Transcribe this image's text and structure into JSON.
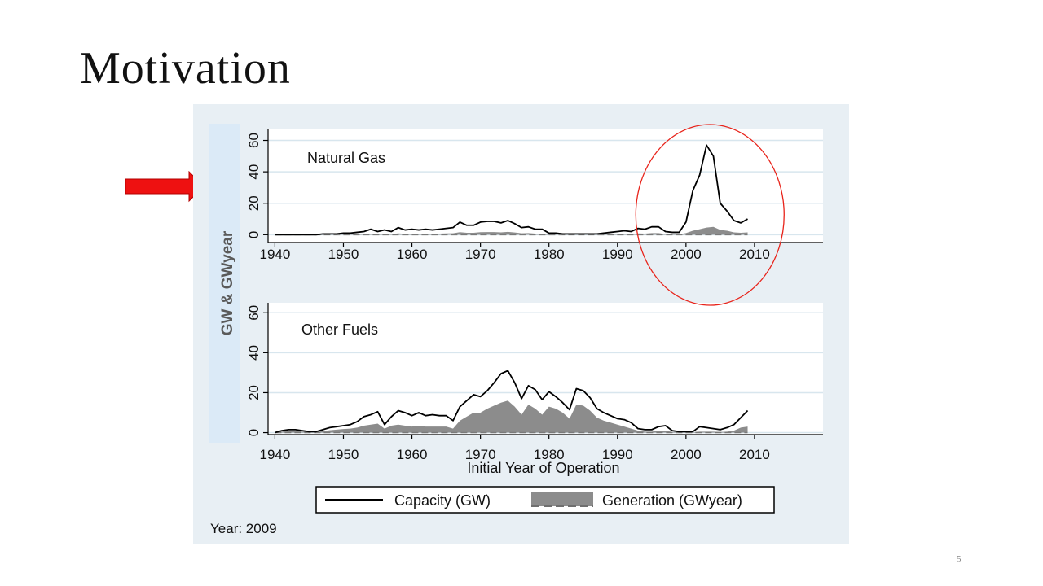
{
  "slide": {
    "title": "Motivation",
    "page_number": "5"
  },
  "figure": {
    "y_axis_title": "GW & GWyear",
    "x_axis_title": "Initial Year of Operation",
    "year_label": "Year: 2009",
    "legend": {
      "capacity": "Capacity (GW)",
      "generation": "Generation (GWyear)"
    }
  },
  "colors": {
    "arrow": "#ee1111",
    "highlight_circle": "#e8231a",
    "panel_background": "#e8eff4",
    "plot_background": "#ffffff",
    "axis_title_band": "#dbeaf7",
    "axis_title_text": "#5a5a5a",
    "capacity_line": "#000000",
    "generation_fill": "#8c8c8c",
    "grid": "#d8e6ee"
  },
  "chart_data": [
    {
      "type": "area",
      "panel_label": "Natural Gas",
      "x_ticks": [
        1940,
        1950,
        1960,
        1970,
        1980,
        1990,
        2000,
        2010
      ],
      "y_ticks": [
        0,
        20,
        40,
        60
      ],
      "xlim": [
        1939,
        2020
      ],
      "ylim": [
        -5,
        67
      ],
      "grid": true,
      "highlighted_range": [
        1998,
        2009
      ],
      "x": [
        1940,
        1941,
        1942,
        1943,
        1944,
        1945,
        1946,
        1947,
        1948,
        1949,
        1950,
        1951,
        1952,
        1953,
        1954,
        1955,
        1956,
        1957,
        1958,
        1959,
        1960,
        1961,
        1962,
        1963,
        1964,
        1965,
        1966,
        1967,
        1968,
        1969,
        1970,
        1971,
        1972,
        1973,
        1974,
        1975,
        1976,
        1977,
        1978,
        1979,
        1980,
        1981,
        1982,
        1983,
        1984,
        1985,
        1986,
        1987,
        1988,
        1989,
        1990,
        1991,
        1992,
        1993,
        1994,
        1995,
        1996,
        1997,
        1998,
        1999,
        2000,
        2001,
        2002,
        2003,
        2004,
        2005,
        2006,
        2007,
        2008,
        2009
      ],
      "series": [
        {
          "name": "Capacity (GW)",
          "style": "line",
          "values": [
            0,
            0,
            0,
            0,
            0,
            0,
            0,
            0.5,
            0.5,
            0.5,
            1,
            1,
            1.5,
            2,
            3.5,
            2,
            3,
            2,
            4.5,
            3,
            3.5,
            3,
            3.5,
            3,
            3.5,
            4,
            4.5,
            8,
            6,
            6,
            8,
            8.5,
            8.5,
            7.5,
            9,
            7,
            4.5,
            5,
            3.5,
            3.5,
            1,
            1,
            0.5,
            0.5,
            0.5,
            0.5,
            0.5,
            0.5,
            1,
            1.5,
            2,
            2.5,
            2,
            4,
            3.5,
            5,
            5,
            2,
            1.5,
            1.5,
            8,
            28,
            38,
            57,
            50,
            20,
            15,
            9,
            7.5,
            10
          ]
        },
        {
          "name": "Generation (GWyear)",
          "style": "area",
          "values": [
            0,
            0,
            0,
            0,
            0,
            0,
            0,
            0,
            0,
            0,
            0.2,
            0.2,
            0.3,
            0.3,
            0.5,
            0.4,
            0.5,
            0.4,
            0.8,
            0.6,
            0.7,
            0.6,
            0.7,
            0.6,
            0.7,
            0.8,
            0.9,
            1.6,
            1.2,
            1.2,
            1.6,
            1.7,
            1.7,
            1.5,
            1.8,
            1.4,
            0.9,
            1,
            0.7,
            0.7,
            0.2,
            0.2,
            0.1,
            0.1,
            0.1,
            0.1,
            0.1,
            0.1,
            0.2,
            0.3,
            0.4,
            0.5,
            0.4,
            0.8,
            0.7,
            1,
            1,
            0.4,
            0.3,
            0.3,
            1,
            2.5,
            3.5,
            4.5,
            5,
            3,
            2.5,
            1.5,
            1.2,
            1.5
          ]
        }
      ]
    },
    {
      "type": "area",
      "panel_label": "Other Fuels",
      "x_ticks": [
        1940,
        1950,
        1960,
        1970,
        1980,
        1990,
        2000,
        2010
      ],
      "y_ticks": [
        0,
        20,
        40,
        60
      ],
      "xlim": [
        1939,
        2020
      ],
      "ylim": [
        -1,
        65
      ],
      "grid": true,
      "x": [
        1940,
        1941,
        1942,
        1943,
        1944,
        1945,
        1946,
        1947,
        1948,
        1949,
        1950,
        1951,
        1952,
        1953,
        1954,
        1955,
        1956,
        1957,
        1958,
        1959,
        1960,
        1961,
        1962,
        1963,
        1964,
        1965,
        1966,
        1967,
        1968,
        1969,
        1970,
        1971,
        1972,
        1973,
        1974,
        1975,
        1976,
        1977,
        1978,
        1979,
        1980,
        1981,
        1982,
        1983,
        1984,
        1985,
        1986,
        1987,
        1988,
        1989,
        1990,
        1991,
        1992,
        1993,
        1994,
        1995,
        1996,
        1997,
        1998,
        1999,
        2000,
        2001,
        2002,
        2003,
        2004,
        2005,
        2006,
        2007,
        2008,
        2009
      ],
      "series": [
        {
          "name": "Capacity (GW)",
          "style": "line",
          "values": [
            0,
            1,
            1.5,
            1.5,
            1,
            0.5,
            0.5,
            1.5,
            2.5,
            3,
            3.5,
            4,
            5.5,
            8,
            9,
            10.5,
            4,
            8,
            11,
            10,
            8.5,
            10,
            8.5,
            9,
            8.5,
            8.5,
            6,
            13,
            16,
            19,
            18,
            21,
            25,
            29.5,
            31,
            25,
            17,
            23.5,
            21.5,
            16.5,
            20.5,
            18,
            15,
            11.5,
            22,
            21,
            17.5,
            12,
            10,
            8.5,
            7,
            6.5,
            5,
            2,
            1.5,
            1.5,
            3,
            3.5,
            1,
            0.5,
            0.5,
            0.5,
            3,
            2.5,
            2,
            1.5,
            2.5,
            4,
            7.5,
            11
          ]
        },
        {
          "name": "Generation (GWyear)",
          "style": "area",
          "values": [
            0,
            0.5,
            1,
            1,
            0.5,
            0.3,
            0.3,
            0.8,
            1.2,
            1.5,
            1.8,
            2,
            2.5,
            3.5,
            4,
            4.5,
            2,
            3.5,
            4,
            3.5,
            3,
            3.5,
            3,
            3,
            3,
            3,
            2,
            6,
            8,
            10,
            10,
            12,
            13.5,
            15,
            16,
            13,
            9,
            14,
            12,
            9,
            13,
            12,
            10,
            7,
            14,
            13.5,
            11,
            7.5,
            6,
            5,
            4,
            3,
            2,
            1,
            0.5,
            0.5,
            1,
            1,
            0.3,
            0.2,
            0.2,
            0.2,
            0.5,
            0.5,
            0.5,
            0.3,
            0.5,
            1,
            2.5,
            3
          ]
        }
      ]
    }
  ]
}
